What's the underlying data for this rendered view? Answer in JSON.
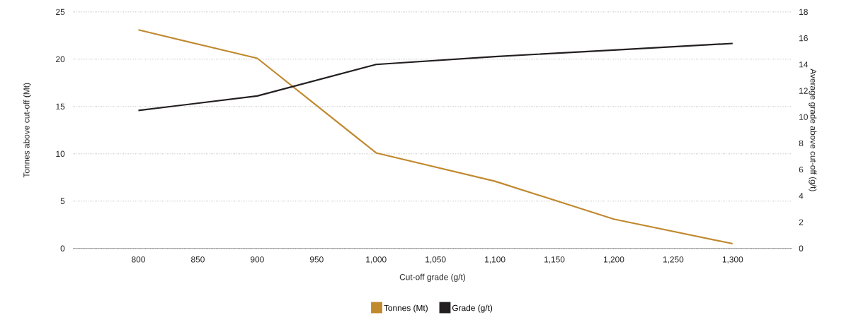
{
  "chart_data": {
    "type": "line",
    "xlabel": "Cut-off grade (g/t)",
    "ylabel": "Tonnes above cut-off (Mt)",
    "y2label": "Average grade above cut-off (g/t)",
    "x": [
      800,
      900,
      1000,
      1100,
      1200,
      1300
    ],
    "xlim": [
      745,
      1350
    ],
    "xticks": [
      800,
      850,
      900,
      950,
      {
        "value": 1000,
        "label": "1,000"
      },
      {
        "value": 1050,
        "label": "1,050"
      },
      {
        "value": 1100,
        "label": "1,100"
      },
      {
        "value": 1150,
        "label": "1,150"
      },
      {
        "value": 1200,
        "label": "1,200"
      },
      {
        "value": 1250,
        "label": "1,250"
      },
      {
        "value": 1300,
        "label": "1,300"
      }
    ],
    "ylim": [
      0,
      25
    ],
    "yticks": [
      0,
      5,
      10,
      15,
      20,
      25
    ],
    "y2lim": [
      0,
      18
    ],
    "y2ticks": [
      0,
      2,
      4,
      6,
      8,
      10,
      12,
      14,
      16,
      18
    ],
    "series": [
      {
        "name": "Tonnes (Mt)",
        "color": "#c0892e",
        "values": [
          23.1,
          20.1,
          10.1,
          7.1,
          3.1,
          0.5
        ]
      },
      {
        "name": "Grade (g/t)",
        "color": "#231f20",
        "values": [
          10.5,
          11.6,
          14.0,
          14.6,
          15.1,
          15.6
        ],
        "axis": "y2"
      }
    ],
    "grid": "y",
    "legend": "bottom",
    "marker": "none",
    "line_style": "solid"
  }
}
